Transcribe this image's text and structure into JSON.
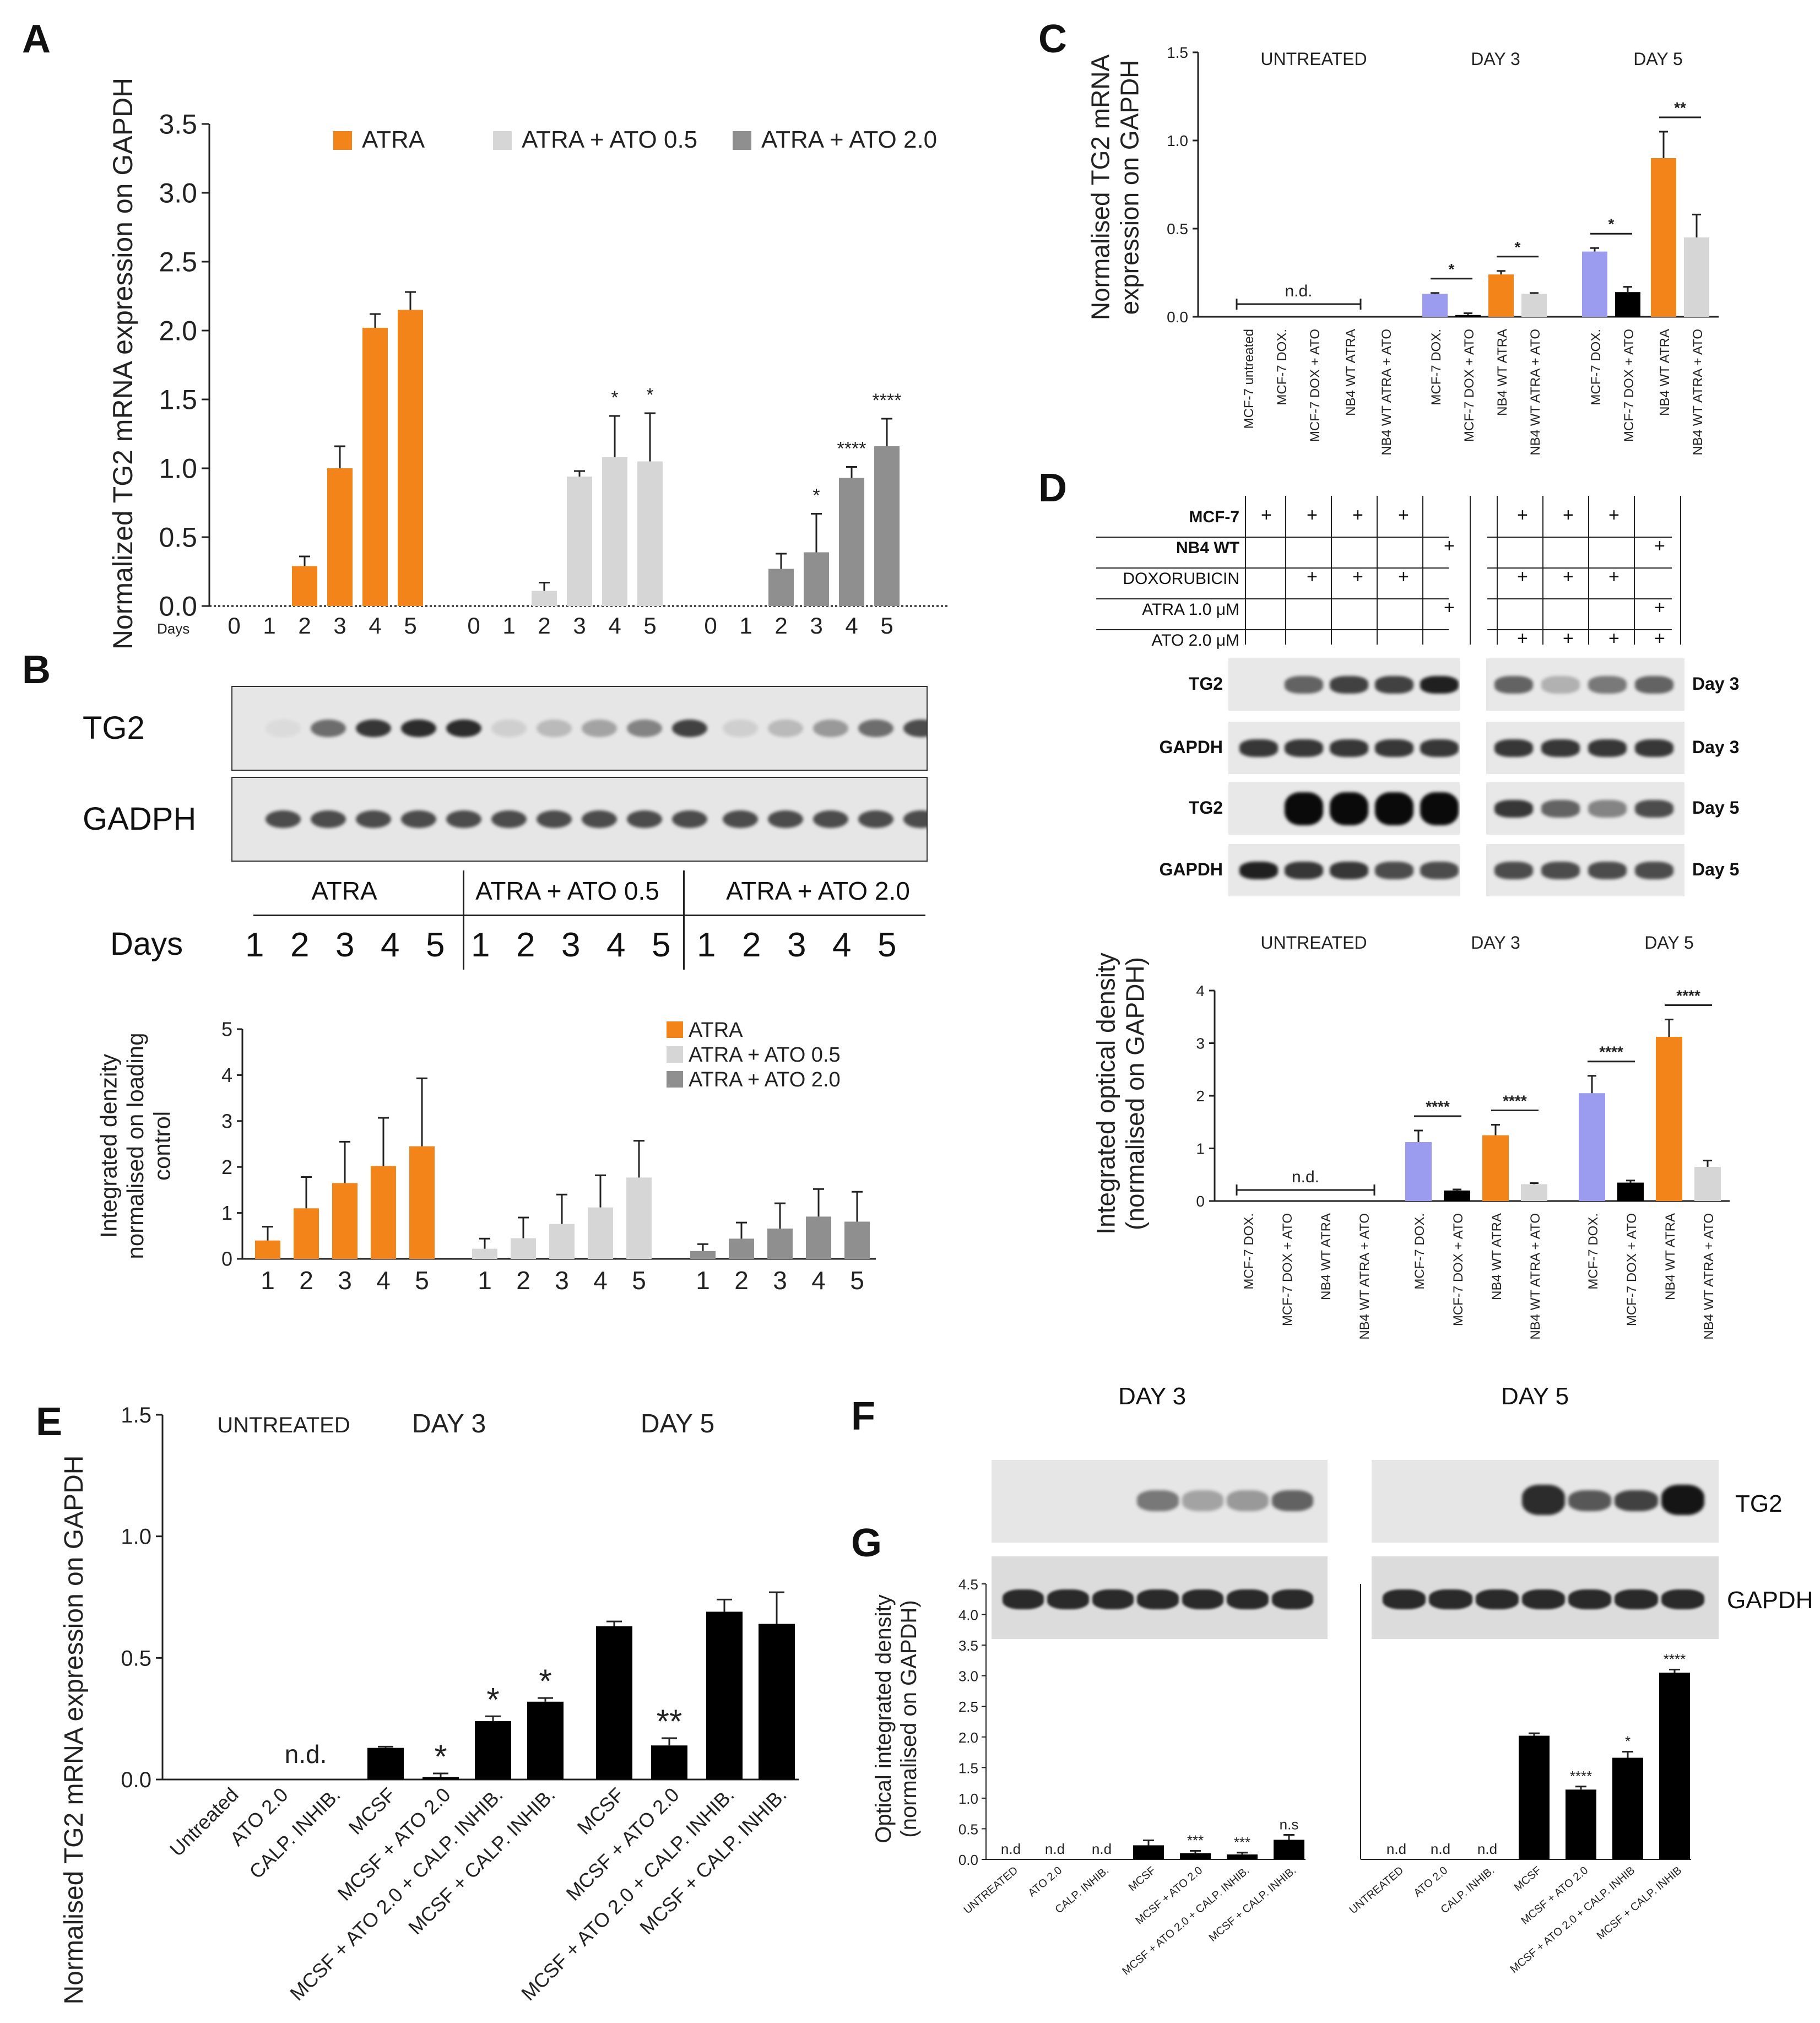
{
  "colors": {
    "orange": "#f28419",
    "lightgray": "#d6d6d6",
    "gray": "#8f8f8f",
    "lav": "#9b9bf0",
    "black": "#000000"
  },
  "panel_labels": {
    "a": "A",
    "b": "B",
    "c": "C",
    "d": "D",
    "e": "E",
    "f": "F",
    "g": "G"
  },
  "chart_data": [
    {
      "id": "A",
      "type": "bar",
      "ylabel": "Normalized TG2 mRNA expression on GAPDH",
      "ylim": [
        0,
        3.5
      ],
      "yticks": [
        "0.0",
        "0.5",
        "1.0",
        "1.5",
        "2.0",
        "2.5",
        "3.0",
        "3.5"
      ],
      "xprefix": "Days",
      "categories": [
        "0",
        "1",
        "2",
        "3",
        "4",
        "5"
      ],
      "series": [
        {
          "name": "ATRA",
          "color": "orange",
          "values": [
            0,
            0,
            0.29,
            1.0,
            2.02,
            2.15
          ],
          "errors": [
            0,
            0,
            0.07,
            0.16,
            0.1,
            0.13
          ],
          "stars": [
            "",
            "",
            "",
            "",
            "",
            ""
          ]
        },
        {
          "name": "ATRA + ATO 0.5",
          "color": "lightgray",
          "values": [
            0,
            0,
            0.11,
            0.94,
            1.08,
            1.05
          ],
          "errors": [
            0,
            0,
            0.06,
            0.04,
            0.3,
            0.35
          ],
          "stars": [
            "",
            "",
            "",
            "",
            "*",
            "*"
          ]
        },
        {
          "name": "ATRA + ATO 2.0",
          "color": "gray",
          "values": [
            0,
            0,
            0.27,
            0.39,
            0.93,
            1.16
          ],
          "errors": [
            0,
            0,
            0.11,
            0.28,
            0.08,
            0.2
          ],
          "stars": [
            "",
            "",
            "",
            "*",
            "****",
            "****"
          ]
        }
      ]
    },
    {
      "id": "B",
      "type": "bar",
      "ylabel": [
        "Integrated denzity",
        "normalised on loading",
        "control"
      ],
      "ylim": [
        0,
        5
      ],
      "yticks": [
        "0",
        "1",
        "2",
        "3",
        "4",
        "5"
      ],
      "categories": [
        "1",
        "2",
        "3",
        "4",
        "5"
      ],
      "series": [
        {
          "name": "ATRA",
          "color": "orange",
          "values": [
            0.4,
            1.1,
            1.65,
            2.02,
            2.45
          ],
          "errors": [
            0.3,
            0.68,
            0.9,
            1.05,
            1.48
          ]
        },
        {
          "name": "ATRA + ATO 0.5",
          "color": "lightgray",
          "values": [
            0.22,
            0.45,
            0.76,
            1.12,
            1.77
          ],
          "errors": [
            0.22,
            0.45,
            0.64,
            0.7,
            0.8
          ]
        },
        {
          "name": "ATRA + ATO 2.0",
          "color": "gray",
          "values": [
            0.17,
            0.44,
            0.66,
            0.92,
            0.81
          ],
          "errors": [
            0.15,
            0.35,
            0.55,
            0.6,
            0.65
          ]
        }
      ]
    },
    {
      "id": "C",
      "type": "bar",
      "ylabel": [
        "Normalised TG2 mRNA",
        "expression on GAPDH"
      ],
      "ylim": [
        0,
        1.5
      ],
      "yticks": [
        "0.0",
        "0.5",
        "1.0",
        "1.5"
      ],
      "groups": [
        "UNTREATED",
        "DAY 3",
        "DAY 5"
      ],
      "nd": "n.d.",
      "categories": [
        "MCF-7 untreated",
        "MCF-7 DOX.",
        "MCF-7 DOX + ATO",
        "NB4 WT ATRA",
        "NB4 WT ATRA + ATO",
        "MCF-7 DOX.",
        "MCF-7 DOX + ATO",
        "NB4 WT ATRA",
        "NB4 WT ATRA + ATO",
        "MCF-7 DOX.",
        "MCF-7 DOX + ATO",
        "NB4 WT ATRA",
        "NB4 WT ATRA + ATO"
      ],
      "values": [
        0,
        0,
        0,
        0,
        0,
        0.13,
        0.01,
        0.24,
        0.13,
        0.37,
        0.14,
        0.9,
        0.45
      ],
      "errors": [
        0,
        0,
        0,
        0,
        0,
        0.005,
        0.01,
        0.02,
        0.005,
        0.02,
        0.03,
        0.15,
        0.13
      ],
      "bar_colors": [
        "",
        "",
        "",
        "",
        "",
        "lav",
        "black",
        "orange",
        "lightgray",
        "lav",
        "black",
        "orange",
        "lightgray"
      ],
      "brackets": [
        {
          "from": 5,
          "to": 6,
          "label": "*"
        },
        {
          "from": 7,
          "to": 8,
          "label": "*"
        },
        {
          "from": 9,
          "to": 10,
          "label": "*"
        },
        {
          "from": 11,
          "to": 12,
          "label": "**"
        }
      ]
    },
    {
      "id": "D",
      "type": "bar",
      "ylabel": [
        "Integrated optical density",
        "(normalised on GAPDH)"
      ],
      "ylim": [
        0,
        4
      ],
      "yticks": [
        "0",
        "1",
        "2",
        "3",
        "4"
      ],
      "groups": [
        "UNTREATED",
        "DAY 3",
        "DAY 5"
      ],
      "nd": "n.d.",
      "categories": [
        "MCF-7 DOX.",
        "MCF-7 DOX + ATO",
        "NB4 WT ATRA",
        "NB4 WT ATRA + ATO",
        "MCF-7 DOX.",
        "MCF-7 DOX + ATO",
        "NB4 WT ATRA",
        "NB4 WT ATRA + ATO",
        "MCF-7 DOX.",
        "MCF-7 DOX + ATO",
        "NB4 WT ATRA",
        "NB4 WT ATRA + ATO"
      ],
      "values": [
        0,
        0,
        0,
        0,
        1.12,
        0.2,
        1.25,
        0.32,
        2.05,
        0.35,
        3.12,
        0.65
      ],
      "errors": [
        0,
        0,
        0,
        0,
        0.22,
        0.02,
        0.2,
        0.02,
        0.33,
        0.04,
        0.33,
        0.12
      ],
      "bar_colors": [
        "",
        "",
        "",
        "",
        "lav",
        "black",
        "orange",
        "lightgray",
        "lav",
        "black",
        "orange",
        "lightgray"
      ],
      "brackets": [
        {
          "from": 4,
          "to": 5,
          "label": "****"
        },
        {
          "from": 6,
          "to": 7,
          "label": "****"
        },
        {
          "from": 8,
          "to": 9,
          "label": "****"
        },
        {
          "from": 10,
          "to": 11,
          "label": "****"
        }
      ]
    },
    {
      "id": "E",
      "type": "bar",
      "ylabel": "Normalised TG2 mRNA expression on GAPDH",
      "ylim": [
        0,
        1.5
      ],
      "yticks": [
        "0.0",
        "0.5",
        "1.0",
        "1.5"
      ],
      "groups": [
        "UNTREATED",
        "DAY 3",
        "DAY 5"
      ],
      "nd": "n.d.",
      "categories": [
        "Untreated",
        "ATO 2.0",
        "CALP. INHIB.",
        "MCSF",
        "MCSF + ATO 2.0",
        "MCSF + ATO 2.0 + CALP. INHIB.",
        "MCSF + CALP. INHIB.",
        "MCSF",
        "MCSF + ATO 2.0",
        "MCSF + ATO 2.0 + CALP. INHIB.",
        "MCSF + CALP. INHIB."
      ],
      "values": [
        0,
        0,
        0,
        0.13,
        0.01,
        0.24,
        0.32,
        0.63,
        0.14,
        0.69,
        0.64
      ],
      "errors": [
        0,
        0,
        0,
        0.005,
        0.015,
        0.02,
        0.015,
        0.02,
        0.03,
        0.05,
        0.13
      ],
      "stars": [
        "",
        "",
        "",
        "",
        "*",
        "*",
        "*",
        "",
        "**",
        "",
        ""
      ]
    },
    {
      "id": "G",
      "type": "bar",
      "ylabel": [
        "Optical integrated density",
        "(normalised on GAPDH)"
      ],
      "ylim": [
        0,
        4.5
      ],
      "yticks": [
        "0.0",
        "0.5",
        "1.0",
        "1.5",
        "2.0",
        "2.5",
        "3.0",
        "3.5",
        "4.0",
        "4.5"
      ],
      "panels": [
        {
          "title": "DAY 3",
          "categories": [
            "UNTREATED",
            "ATO 2.0",
            "CALP. INHIB.",
            "MCSF",
            "MCSF + ATO 2.0",
            "MCSF + ATO 2.0 + CALP. INHIB.",
            "MCSF + CALP. INHIB."
          ],
          "values": [
            0,
            0,
            0,
            0.23,
            0.1,
            0.08,
            0.32
          ],
          "errors": [
            0,
            0,
            0,
            0.08,
            0.04,
            0.03,
            0.08
          ],
          "stars": [
            "n.d",
            "n.d",
            "n.d",
            "",
            "***",
            "***",
            "n.s"
          ]
        },
        {
          "title": "DAY 5",
          "categories": [
            "UNTREATED",
            "ATO 2.0",
            "CALP. INHIB.",
            "MCSF",
            "MCSF + ATO 2.0",
            "MCSF + ATO 2.0 + CALP. INHIB",
            "MCSF + CALP. INHIB"
          ],
          "values": [
            0,
            0,
            0,
            2.02,
            1.14,
            1.66,
            3.05
          ],
          "errors": [
            0,
            0,
            0,
            0.04,
            0.05,
            0.1,
            0.05
          ],
          "stars": [
            "n.d",
            "n.d",
            "n.d",
            "",
            "****",
            "*",
            "****"
          ]
        }
      ]
    }
  ],
  "blot_b": {
    "rows": [
      "TG2",
      "GADPH"
    ],
    "groups": [
      "ATRA",
      "ATRA + ATO 0.5",
      "ATRA + ATO 2.0"
    ],
    "days_label": "Days",
    "days": [
      "1",
      "2",
      "3",
      "4",
      "5"
    ],
    "tg2_intensity": [
      0.05,
      0.55,
      0.8,
      0.85,
      0.85,
      0.1,
      0.2,
      0.3,
      0.45,
      0.75,
      0.1,
      0.2,
      0.35,
      0.55,
      0.7
    ],
    "gapdh_intensity": [
      0.7,
      0.7,
      0.7,
      0.7,
      0.7,
      0.7,
      0.7,
      0.7,
      0.7,
      0.7,
      0.7,
      0.7,
      0.7,
      0.7,
      0.7
    ]
  },
  "blot_d": {
    "condition_rows": [
      "MCF-7",
      "NB4 WT",
      "DOXORUBICIN",
      "ATRA 1.0 μM",
      "ATO 2.0 μM"
    ],
    "plus": "+",
    "matrix": [
      [
        1,
        1,
        1,
        1,
        0,
        1,
        1,
        1,
        0
      ],
      [
        0,
        0,
        0,
        0,
        1,
        0,
        0,
        0,
        1
      ],
      [
        0,
        1,
        1,
        1,
        0,
        1,
        1,
        1,
        0
      ],
      [
        0,
        0,
        0,
        0,
        1,
        0,
        0,
        0,
        1
      ],
      [
        0,
        0,
        0,
        0,
        0,
        1,
        1,
        1,
        1
      ]
    ],
    "rows": [
      "TG2",
      "GAPDH",
      "TG2",
      "GAPDH"
    ],
    "days": [
      "Day 3",
      "Day 3",
      "Day 5",
      "Day 5"
    ],
    "intensity": [
      [
        0,
        0.6,
        0.75,
        0.75,
        0.9,
        0.6,
        0.25,
        0.5,
        0.6
      ],
      [
        0.8,
        0.8,
        0.8,
        0.8,
        0.8,
        0.8,
        0.8,
        0.8,
        0.8
      ],
      [
        0,
        1,
        1,
        1,
        1,
        0.8,
        0.6,
        0.45,
        0.7
      ],
      [
        0.9,
        0.8,
        0.8,
        0.7,
        0.7,
        0.7,
        0.7,
        0.7,
        0.7
      ]
    ]
  },
  "blot_f": {
    "groups": [
      "DAY 3",
      "DAY 5"
    ],
    "rows": [
      "TG2",
      "GAPDH"
    ],
    "tg2_intensity": [
      [
        0,
        0,
        0,
        0.5,
        0.3,
        0.35,
        0.6
      ],
      [
        0,
        0,
        0,
        0.85,
        0.65,
        0.75,
        0.95
      ]
    ]
  }
}
